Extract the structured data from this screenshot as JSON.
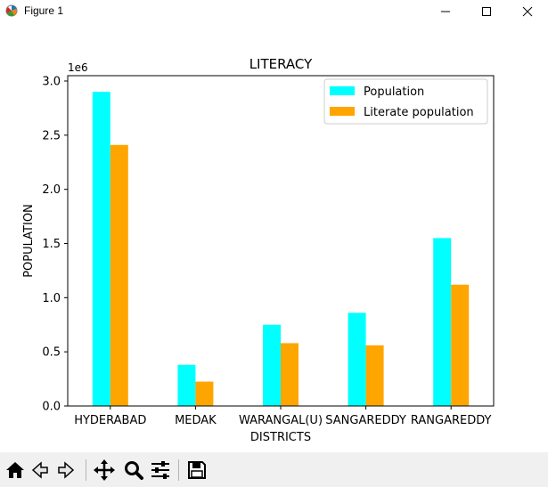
{
  "window": {
    "title": "Figure 1"
  },
  "icons": {
    "app": "matplotlib-icon",
    "minimize": "minimize-icon",
    "maximize": "maximize-icon",
    "close": "close-icon"
  },
  "toolbar": {
    "buttons": [
      "home-icon",
      "back-icon",
      "forward-icon",
      "pan-icon",
      "zoom-icon",
      "configure-subplots-icon",
      "save-icon"
    ]
  },
  "chart_data": {
    "type": "bar",
    "title": "LITERACY",
    "xlabel": "DISTRICTS",
    "ylabel": "POPULATION",
    "offset_text": "1e6",
    "categories": [
      "HYDERABAD",
      "MEDAK",
      "WARANGAL(U)",
      "SANGAREDDY",
      "RANGAREDDY"
    ],
    "series": [
      {
        "name": "Population",
        "color": "#00ffff",
        "values": [
          2900000,
          380000,
          750000,
          860000,
          1550000
        ]
      },
      {
        "name": "Literate population",
        "color": "#ffa500",
        "values": [
          2410000,
          225000,
          580000,
          560000,
          1120000
        ]
      }
    ],
    "ylim": [
      0,
      3000000
    ],
    "yticks": [
      "0.0",
      "0.5",
      "1.0",
      "1.5",
      "2.0",
      "2.5",
      "3.0"
    ],
    "ytick_values": [
      0,
      500000,
      1000000,
      1500000,
      2000000,
      2500000,
      3000000
    ],
    "grid": false,
    "legend": "top-right"
  }
}
